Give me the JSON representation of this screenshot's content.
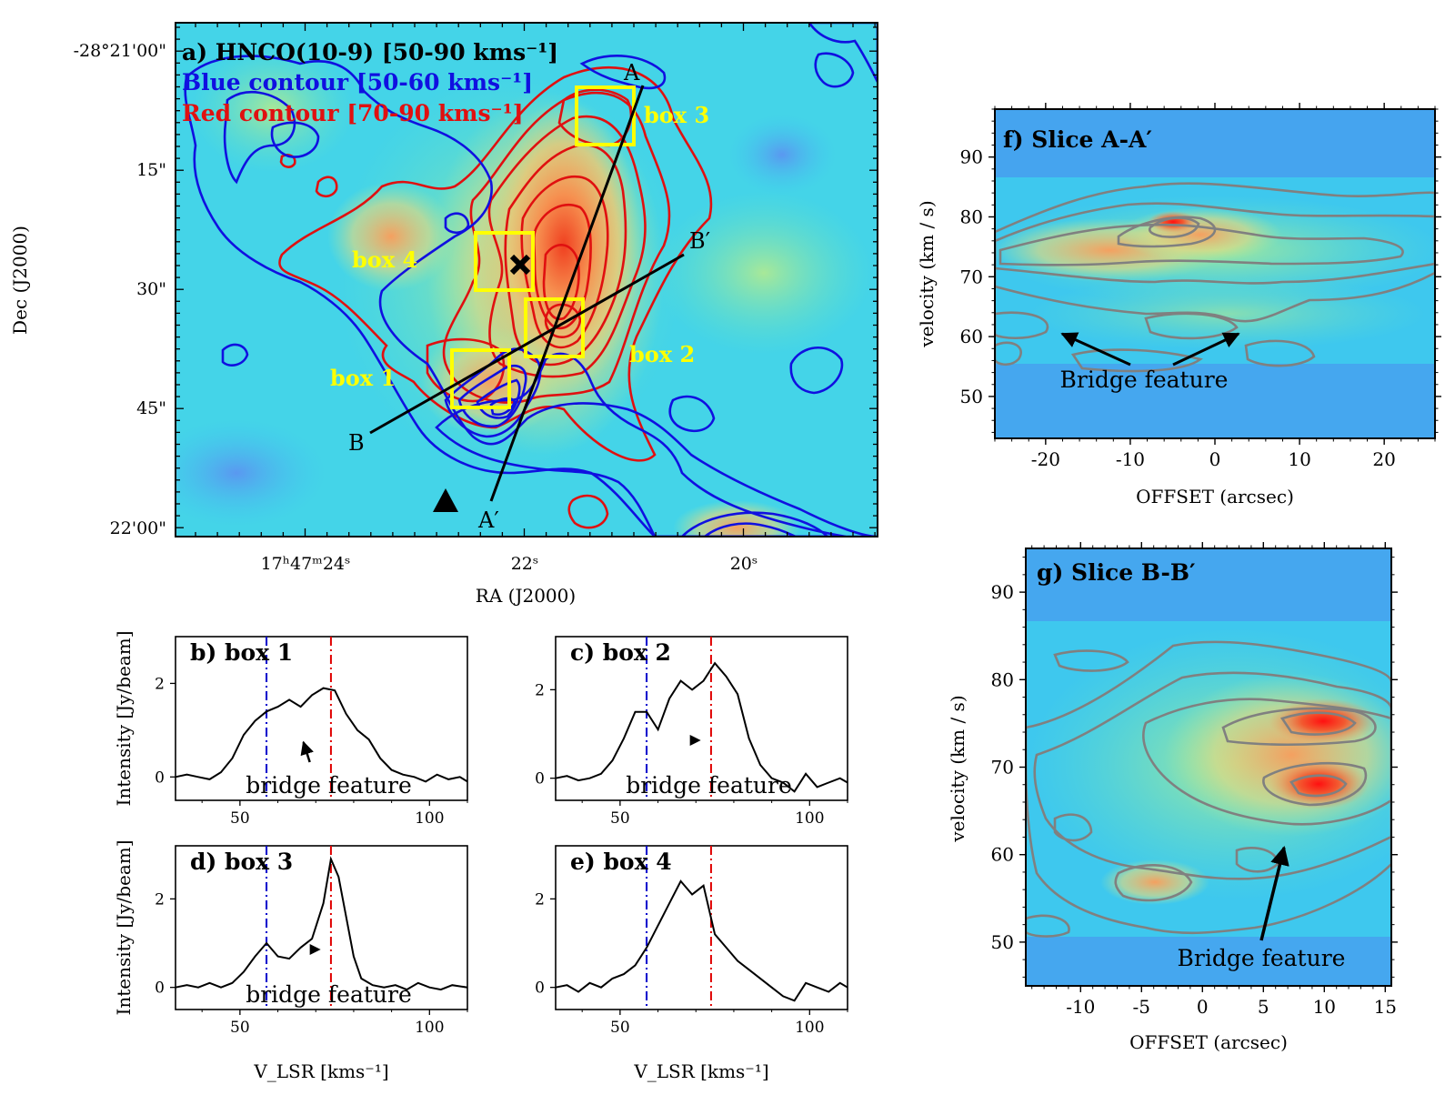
{
  "colors": {
    "blue_contour": "#1010e0",
    "red_contour": "#e01010",
    "yellow_box": "#ffff00",
    "slice_contour": "#808080",
    "blue_line": "#0000cc",
    "red_line": "#e00000"
  },
  "chart_data": [
    {
      "panel": "a",
      "type": "heatmap",
      "title": "a) HNCO(10-9) [50-90 kms⁻¹]",
      "legend": [
        "Blue contour [50-60 kms⁻¹]",
        "Red contour [70-90 kms⁻¹]"
      ],
      "xlabel": "RA (J2000)",
      "ylabel": "Dec (J2000)",
      "x_ticks": [
        "17ʰ47ᵐ24ˢ",
        "22ˢ",
        "20ˢ"
      ],
      "y_ticks": [
        "-28°21'00\"",
        "15\"",
        "30\"",
        "45\"",
        "22'00\""
      ],
      "boxes": [
        "box 1",
        "box 2",
        "box 3",
        "box 4"
      ],
      "slices": [
        {
          "start": "A",
          "end": "A′"
        },
        {
          "start": "B",
          "end": "B′"
        }
      ],
      "markers": [
        "cross",
        "triangle"
      ]
    },
    {
      "panel": "b",
      "type": "line",
      "title": "b) box 1",
      "xlabel": "V_LSR [kms⁻¹]",
      "ylabel": "Intensity [Jy/beam]",
      "xlim": [
        33,
        110
      ],
      "ylim": [
        -0.5,
        3.0
      ],
      "xticks": [
        50,
        100
      ],
      "yticks": [
        0,
        2
      ],
      "vlines": {
        "blue": 57,
        "red": 74
      },
      "annotation": "bridge feature",
      "x": [
        33,
        36,
        39,
        42,
        45,
        48,
        51,
        54,
        57,
        60,
        63,
        66,
        69,
        72,
        75,
        78,
        81,
        84,
        87,
        90,
        93,
        96,
        99,
        102,
        105,
        108,
        110
      ],
      "y": [
        0,
        0.05,
        0,
        -0.05,
        0.1,
        0.4,
        0.9,
        1.2,
        1.4,
        1.5,
        1.65,
        1.5,
        1.75,
        1.9,
        1.85,
        1.35,
        1.0,
        0.8,
        0.4,
        0.15,
        0.05,
        0,
        -0.1,
        0.05,
        -0.05,
        0,
        -0.1
      ]
    },
    {
      "panel": "c",
      "type": "line",
      "title": "c) box 2",
      "xlabel": "V_LSR [kms⁻¹]",
      "ylabel": "Intensity [Jy/beam]",
      "xlim": [
        33,
        110
      ],
      "ylim": [
        -0.5,
        3.2
      ],
      "xticks": [
        50,
        100
      ],
      "yticks": [
        0,
        2
      ],
      "vlines": {
        "blue": 57,
        "red": 74
      },
      "annotation": "bridge feature",
      "x": [
        33,
        36,
        39,
        42,
        45,
        48,
        51,
        54,
        57,
        60,
        63,
        66,
        69,
        72,
        75,
        78,
        81,
        84,
        87,
        90,
        93,
        96,
        99,
        102,
        105,
        108,
        110
      ],
      "y": [
        0,
        0.05,
        -0.05,
        0,
        0.1,
        0.4,
        0.9,
        1.5,
        1.5,
        1.1,
        1.8,
        2.2,
        2.0,
        2.2,
        2.6,
        2.3,
        1.9,
        0.9,
        0.3,
        0,
        -0.1,
        -0.3,
        0.1,
        -0.2,
        -0.1,
        0,
        -0.1
      ]
    },
    {
      "panel": "d",
      "type": "line",
      "title": "d) box 3",
      "xlabel": "V_LSR [kms⁻¹]",
      "ylabel": "Intensity [Jy/beam]",
      "xlim": [
        33,
        110
      ],
      "ylim": [
        -0.5,
        3.2
      ],
      "xticks": [
        50,
        100
      ],
      "yticks": [
        0,
        2
      ],
      "vlines": {
        "blue": 57,
        "red": 74
      },
      "annotation": "bridge feature",
      "x": [
        33,
        36,
        39,
        42,
        45,
        48,
        51,
        54,
        57,
        60,
        63,
        66,
        69,
        72,
        74,
        76,
        78,
        80,
        82,
        85,
        88,
        91,
        94,
        97,
        100,
        103,
        106,
        110
      ],
      "y": [
        0,
        0.05,
        0,
        0.1,
        0,
        0.1,
        0.35,
        0.7,
        1.0,
        0.7,
        0.65,
        0.9,
        1.1,
        1.9,
        2.9,
        2.5,
        1.6,
        0.7,
        0.2,
        0.05,
        0,
        0.05,
        -0.05,
        0.1,
        0,
        -0.05,
        0.05,
        0
      ]
    },
    {
      "panel": "e",
      "type": "line",
      "title": "e) box 4",
      "xlabel": "V_LSR [kms⁻¹]",
      "ylabel": "Intensity [Jy/beam]",
      "xlim": [
        33,
        110
      ],
      "ylim": [
        -0.5,
        3.2
      ],
      "xticks": [
        50,
        100
      ],
      "yticks": [
        0,
        2
      ],
      "vlines": {
        "blue": 57,
        "red": 74
      },
      "x": [
        33,
        36,
        39,
        42,
        45,
        48,
        51,
        54,
        57,
        60,
        63,
        66,
        69,
        72,
        75,
        78,
        81,
        84,
        87,
        90,
        93,
        96,
        99,
        102,
        105,
        108,
        110
      ],
      "y": [
        0,
        0.05,
        -0.1,
        0.1,
        0,
        0.2,
        0.3,
        0.5,
        0.9,
        1.4,
        1.9,
        2.4,
        2.1,
        2.3,
        1.2,
        0.9,
        0.6,
        0.4,
        0.2,
        0,
        -0.2,
        -0.3,
        0.1,
        0,
        -0.1,
        0.1,
        0
      ]
    },
    {
      "panel": "f",
      "type": "heatmap",
      "title": "f) Slice A-A′",
      "xlabel": "OFFSET (arcsec)",
      "ylabel": "velocity (km / s)",
      "xlim": [
        -26,
        26
      ],
      "ylim": [
        43,
        98
      ],
      "xticks": [
        -20,
        -10,
        0,
        10,
        20
      ],
      "yticks": [
        50,
        60,
        70,
        80,
        90
      ],
      "annotation": "Bridge feature"
    },
    {
      "panel": "g",
      "type": "heatmap",
      "title": "g) Slice B-B′",
      "xlabel": "OFFSET (arcsec)",
      "ylabel": "velocity (km / s)",
      "xlim": [
        -14.5,
        15.5
      ],
      "ylim": [
        45,
        95
      ],
      "xticks": [
        -10,
        -5,
        0,
        5,
        10,
        15
      ],
      "yticks": [
        50,
        60,
        70,
        80,
        90
      ],
      "annotation": "Bridge feature"
    }
  ]
}
